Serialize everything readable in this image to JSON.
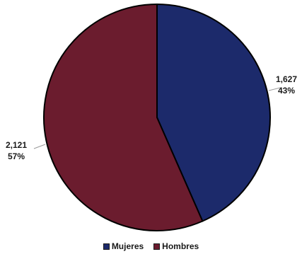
{
  "chart_data": {
    "type": "pie",
    "series": [
      {
        "name": "Mujeres",
        "value": 1627,
        "value_label": "1,627",
        "pct_label": "43%",
        "color": "#1c2a6b"
      },
      {
        "name": "Hombres",
        "value": 2121,
        "value_label": "2,121",
        "pct_label": "57%",
        "color": "#6b1c2e"
      }
    ],
    "start_angle": "12 o'clock",
    "direction": "clockwise",
    "slice_outline": "#000000",
    "legend_position": "bottom-center"
  },
  "legend": {
    "items": [
      {
        "label": "Mujeres",
        "color": "#1c2a6b"
      },
      {
        "label": "Hombres",
        "color": "#6b1c2e"
      }
    ]
  }
}
